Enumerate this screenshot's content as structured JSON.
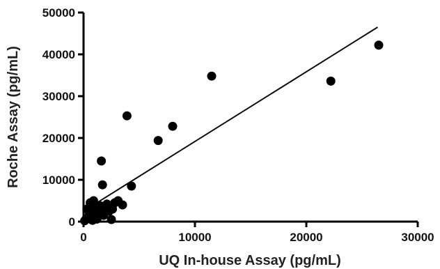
{
  "chart_data": {
    "type": "scatter",
    "xlabel": "UQ In-house Assay (pg/mL)",
    "ylabel": "Roche Assay (pg/mL)",
    "xlim": [
      0,
      30000
    ],
    "ylim": [
      0,
      50000
    ],
    "x_ticks": [
      0,
      10000,
      20000,
      30000
    ],
    "y_ticks": [
      0,
      10000,
      20000,
      30000,
      40000,
      50000
    ],
    "grid": false,
    "legend": "none",
    "point_color": "#000000",
    "line_color": "#000000",
    "series": [
      {
        "points": [
          {
            "x": 100,
            "y": 200
          },
          {
            "x": 200,
            "y": 500
          },
          {
            "x": 300,
            "y": 3000
          },
          {
            "x": 400,
            "y": 800
          },
          {
            "x": 500,
            "y": 1500
          },
          {
            "x": 600,
            "y": 4500
          },
          {
            "x": 700,
            "y": 2500
          },
          {
            "x": 800,
            "y": 300
          },
          {
            "x": 900,
            "y": 5000
          },
          {
            "x": 1000,
            "y": 1200
          },
          {
            "x": 1100,
            "y": 3500
          },
          {
            "x": 1200,
            "y": 600
          },
          {
            "x": 1300,
            "y": 2000
          },
          {
            "x": 1500,
            "y": 3800
          },
          {
            "x": 1600,
            "y": 14500
          },
          {
            "x": 1700,
            "y": 8800
          },
          {
            "x": 1800,
            "y": 1500
          },
          {
            "x": 1900,
            "y": 2800
          },
          {
            "x": 2100,
            "y": 4200
          },
          {
            "x": 2300,
            "y": 2500
          },
          {
            "x": 2500,
            "y": 500
          },
          {
            "x": 2600,
            "y": 3000
          },
          {
            "x": 2800,
            "y": 4500
          },
          {
            "x": 3100,
            "y": 5000
          },
          {
            "x": 3500,
            "y": 4000
          },
          {
            "x": 3900,
            "y": 25300
          },
          {
            "x": 4300,
            "y": 8500
          },
          {
            "x": 6700,
            "y": 19400
          },
          {
            "x": 8000,
            "y": 22800
          },
          {
            "x": 11500,
            "y": 34800
          },
          {
            "x": 22200,
            "y": 33600
          },
          {
            "x": 26500,
            "y": 42200
          }
        ]
      }
    ],
    "fit_line": {
      "x1": 0,
      "y1": 2500,
      "x2": 26400,
      "y2": 46500
    }
  }
}
